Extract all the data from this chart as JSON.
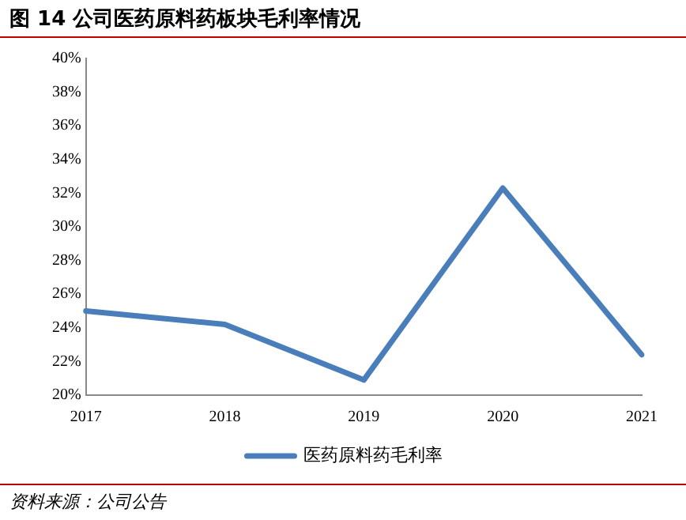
{
  "chart_data": {
    "type": "line",
    "title": "图 14 公司医药原料药板块毛利率情况",
    "categories": [
      "2017",
      "2018",
      "2019",
      "2020",
      "2021"
    ],
    "series": [
      {
        "name": "医药原料药毛利率",
        "color": "#4a7ebb",
        "values": [
          25.0,
          24.2,
          20.9,
          32.3,
          22.4
        ]
      }
    ],
    "ylim": [
      20,
      40
    ],
    "yticks": [
      {
        "value": 20,
        "label": "20%"
      },
      {
        "value": 22,
        "label": "22%"
      },
      {
        "value": 24,
        "label": "24%"
      },
      {
        "value": 26,
        "label": "26%"
      },
      {
        "value": 28,
        "label": "28%"
      },
      {
        "value": 30,
        "label": "30%"
      },
      {
        "value": 32,
        "label": "32%"
      },
      {
        "value": 34,
        "label": "34%"
      },
      {
        "value": 36,
        "label": "36%"
      },
      {
        "value": 38,
        "label": "38%"
      },
      {
        "value": 40,
        "label": "40%"
      }
    ],
    "grid": false,
    "legend": "bottom",
    "marker": "none",
    "line_style": "solid",
    "annotations": [
      "资料来源：公司公告"
    ]
  }
}
